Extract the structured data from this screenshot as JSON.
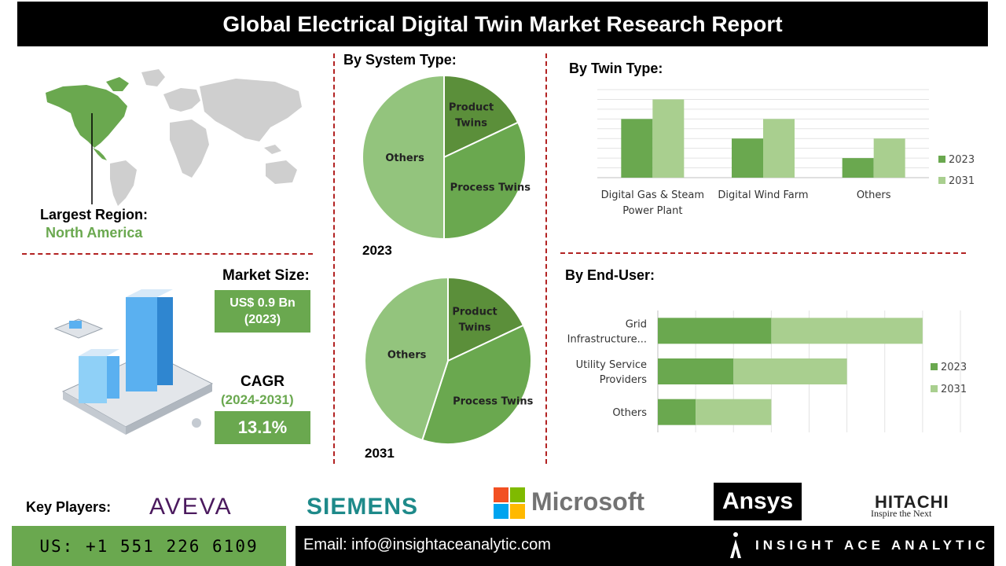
{
  "title": "Global Electrical Digital Twin Market Research Report",
  "region": {
    "label": "Largest Region:",
    "value": "North America"
  },
  "market_size": {
    "label": "Market Size:",
    "value_line1": "US$ 0.9 Bn",
    "value_line2": "(2023)"
  },
  "cagr": {
    "label": "CAGR",
    "period": "(2024-2031)",
    "value": "13.1%"
  },
  "system_type": {
    "title": "By System Type:"
  },
  "twin_type": {
    "title": "By  Twin Type:"
  },
  "end_user": {
    "title": "By End-User:"
  },
  "key_players": {
    "label": "Key Players:",
    "logos": [
      "AVEVA",
      "SIEMENS",
      "Microsoft",
      "Ansys",
      "HITACHI",
      "Inspire the Next"
    ]
  },
  "footer": {
    "phone": "US: +1 551 226 6109",
    "email": "Email: info@insightaceanalytic.com",
    "brand": "INSIGHT ACE ANALYTIC"
  },
  "colors": {
    "dark_green": "#5b8f3a",
    "mid_green": "#6aa84f",
    "light_green": "#a9cf8f",
    "pie_light": "#93c47d",
    "accent_red": "#b22222"
  },
  "chart_data": [
    {
      "type": "pie",
      "label": "2023",
      "slices": [
        {
          "name": "Product Twins",
          "value": 18
        },
        {
          "name": "Process Twins",
          "value": 32
        },
        {
          "name": "Others",
          "value": 50
        }
      ]
    },
    {
      "type": "pie",
      "label": "2031",
      "slices": [
        {
          "name": "Product Twins",
          "value": 18
        },
        {
          "name": "Process Twins",
          "value": 37
        },
        {
          "name": "Others",
          "value": 45
        }
      ]
    },
    {
      "type": "bar",
      "categories": [
        "Digital Gas & Steam Power Plant",
        "Digital Wind Farm",
        "Others"
      ],
      "series": [
        {
          "name": "2023",
          "values": [
            3,
            2,
            1
          ]
        },
        {
          "name": "2031",
          "values": [
            4,
            3,
            2
          ]
        }
      ],
      "ylim": [
        0,
        4.5
      ],
      "legend": "right",
      "grid": true
    },
    {
      "type": "bar",
      "orientation": "horizontal",
      "stacked": true,
      "categories": [
        "Grid Infrastructure...",
        "Utility Service Providers",
        "Others"
      ],
      "series": [
        {
          "name": "2023",
          "values": [
            3,
            2,
            1
          ]
        },
        {
          "name": "2031",
          "values": [
            4,
            3,
            2
          ]
        }
      ],
      "xlim": [
        0,
        8
      ],
      "legend": "right",
      "grid": true
    }
  ]
}
